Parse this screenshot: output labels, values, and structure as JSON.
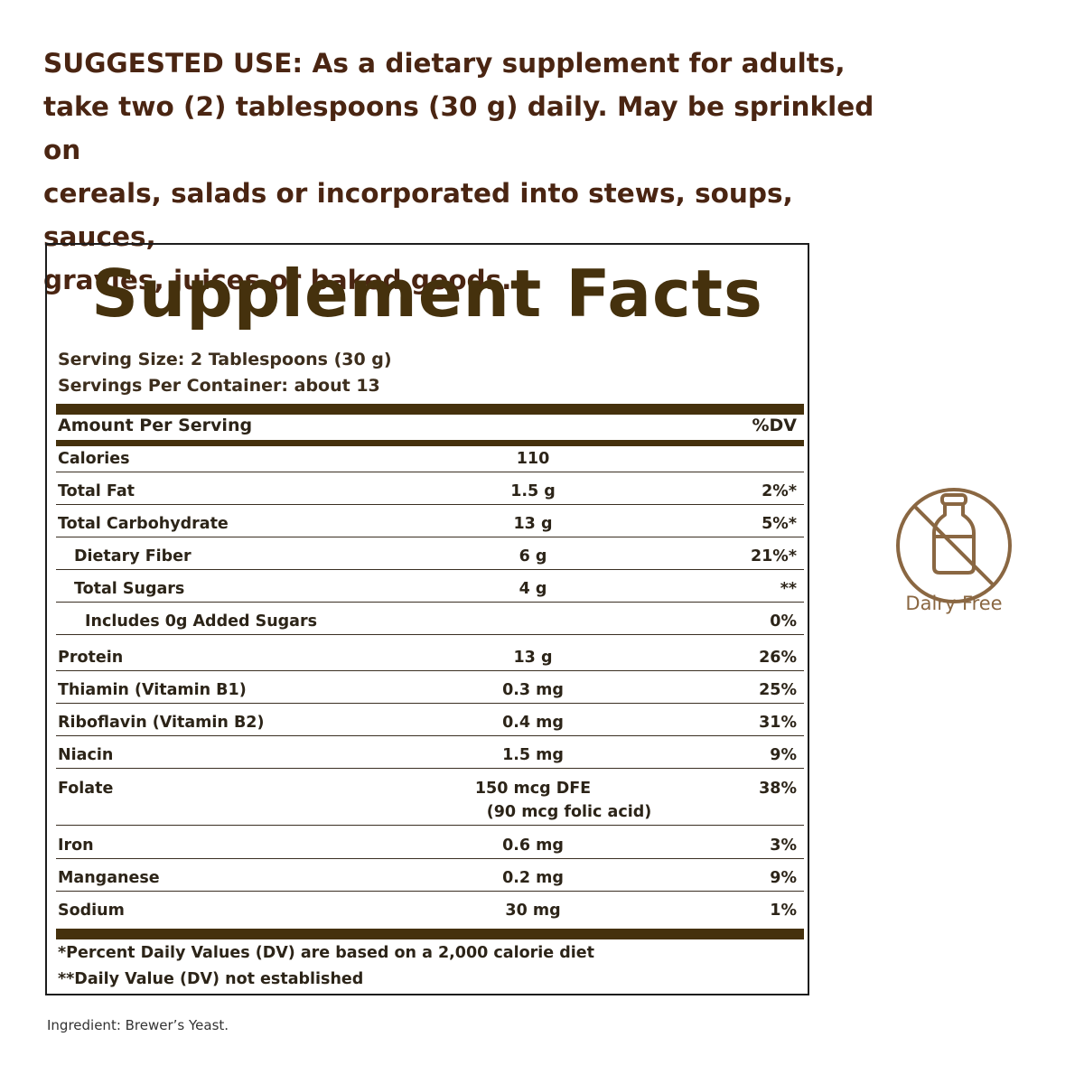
{
  "suggested_use": {
    "lead": "SUGGESTED USE:",
    "lines": [
      " As a dietary supplement for adults,",
      "take two (2) tablespoons (30 g) daily. May be sprinkled on",
      "cereals, salads or incorporated into stews, soups, sauces,",
      "gravies, juices or baked goods."
    ]
  },
  "panel": {
    "title": "Supplement Facts",
    "serving_size": "Serving Size: 2 Tablespoons (30 g)",
    "servings_per_container": "Servings Per Container: about 13",
    "header_left": "Amount Per Serving",
    "header_right": "%DV",
    "rows": [
      {
        "name": "Calories",
        "amount": "110",
        "dv": ""
      },
      {
        "name": "Total Fat",
        "amount": "1.5 g",
        "dv": "2%*"
      },
      {
        "name": "Total Carbohydrate",
        "amount": "13 g",
        "dv": "5%*"
      },
      {
        "name": "Dietary Fiber",
        "amount": "6 g",
        "dv": "21%*"
      },
      {
        "name": "Total Sugars",
        "amount": "4 g",
        "dv": "**"
      },
      {
        "name": "Includes 0g Added Sugars",
        "amount": "",
        "dv": "0%"
      },
      {
        "name": "Protein",
        "amount": "13 g",
        "dv": "26%"
      },
      {
        "name": "Thiamin (Vitamin B1)",
        "amount": "0.3 mg",
        "dv": "25%"
      },
      {
        "name": "Riboflavin (Vitamin B2)",
        "amount": "0.4 mg",
        "dv": "31%"
      },
      {
        "name": "Niacin",
        "amount": "1.5 mg",
        "dv": "9%"
      },
      {
        "name": "Folate",
        "amount": "150 mcg DFE",
        "amount2": "(90 mcg folic acid)",
        "dv": "38%"
      },
      {
        "name": "Iron",
        "amount": "0.6 mg",
        "dv": "3%"
      },
      {
        "name": "Manganese",
        "amount": "0.2 mg",
        "dv": "9%"
      },
      {
        "name": "Sodium",
        "amount": "30 mg",
        "dv": "1%"
      }
    ],
    "footnote_1": "*Percent Daily Values (DV) are based on a 2,000 calorie diet",
    "footnote_2": "**Daily Value (DV) not established"
  },
  "ingredient": "Ingredient: Brewer’s Yeast.",
  "badge": {
    "label": "Dairy Free",
    "icon": "dairy-free-bottle-icon",
    "color": "#8a6742"
  }
}
